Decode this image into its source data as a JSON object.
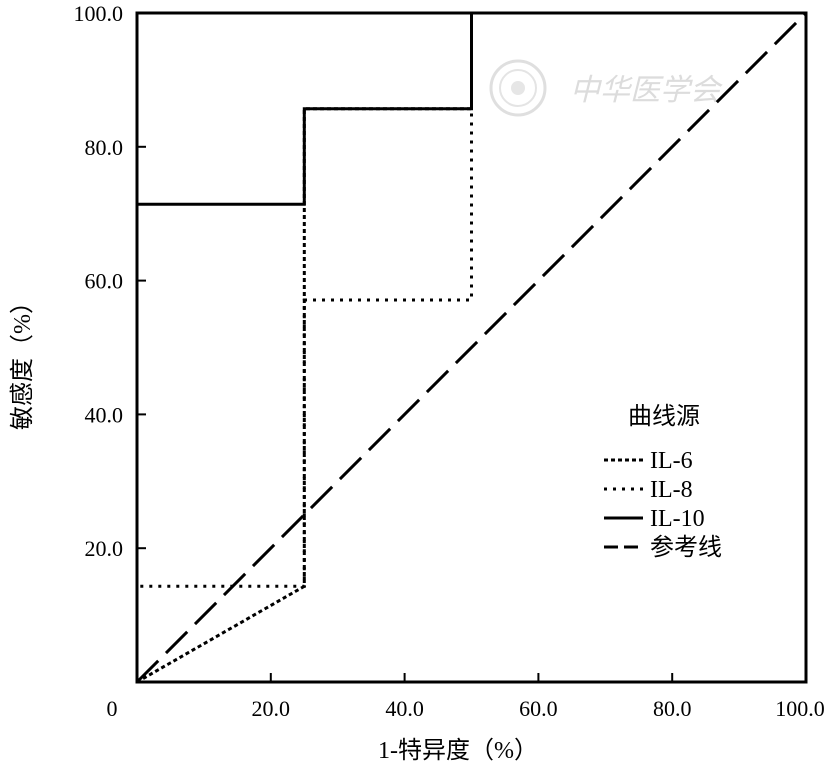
{
  "chart_data": {
    "type": "line",
    "xlabel": "1-特异度（%）",
    "ylabel": "敏感度（%）",
    "xlim": [
      0,
      100
    ],
    "ylim": [
      0,
      100
    ],
    "x_ticks": [
      "0",
      "20.0",
      "40.0",
      "60.0",
      "80.0",
      "100.0"
    ],
    "y_ticks": [
      "20.0",
      "40.0",
      "60.0",
      "80.0",
      "100.0"
    ],
    "grid": false,
    "legend": {
      "title": "曲线源",
      "position": "right"
    },
    "series": [
      {
        "name": "IL-6",
        "style": "dotted-dense",
        "points": [
          [
            0,
            0
          ],
          [
            25,
            14.3
          ],
          [
            25,
            85.7
          ],
          [
            50,
            85.7
          ],
          [
            50,
            100
          ],
          [
            100,
            100
          ]
        ]
      },
      {
        "name": "IL-8",
        "style": "dotted-sparse",
        "points": [
          [
            0,
            0
          ],
          [
            0,
            14.3
          ],
          [
            25,
            14.3
          ],
          [
            25,
            57.1
          ],
          [
            50,
            57.1
          ],
          [
            50,
            100
          ],
          [
            100,
            100
          ]
        ]
      },
      {
        "name": "IL-10",
        "style": "solid",
        "points": [
          [
            0,
            0
          ],
          [
            0,
            71.4
          ],
          [
            25,
            71.4
          ],
          [
            25,
            85.7
          ],
          [
            50,
            85.7
          ],
          [
            50,
            100
          ],
          [
            100,
            100
          ]
        ]
      },
      {
        "name": "参考线",
        "style": "long-dash",
        "points": [
          [
            0,
            0
          ],
          [
            100,
            100
          ]
        ]
      }
    ]
  },
  "watermark": {
    "text": "中华医学会",
    "color": "#d9d9d9"
  }
}
